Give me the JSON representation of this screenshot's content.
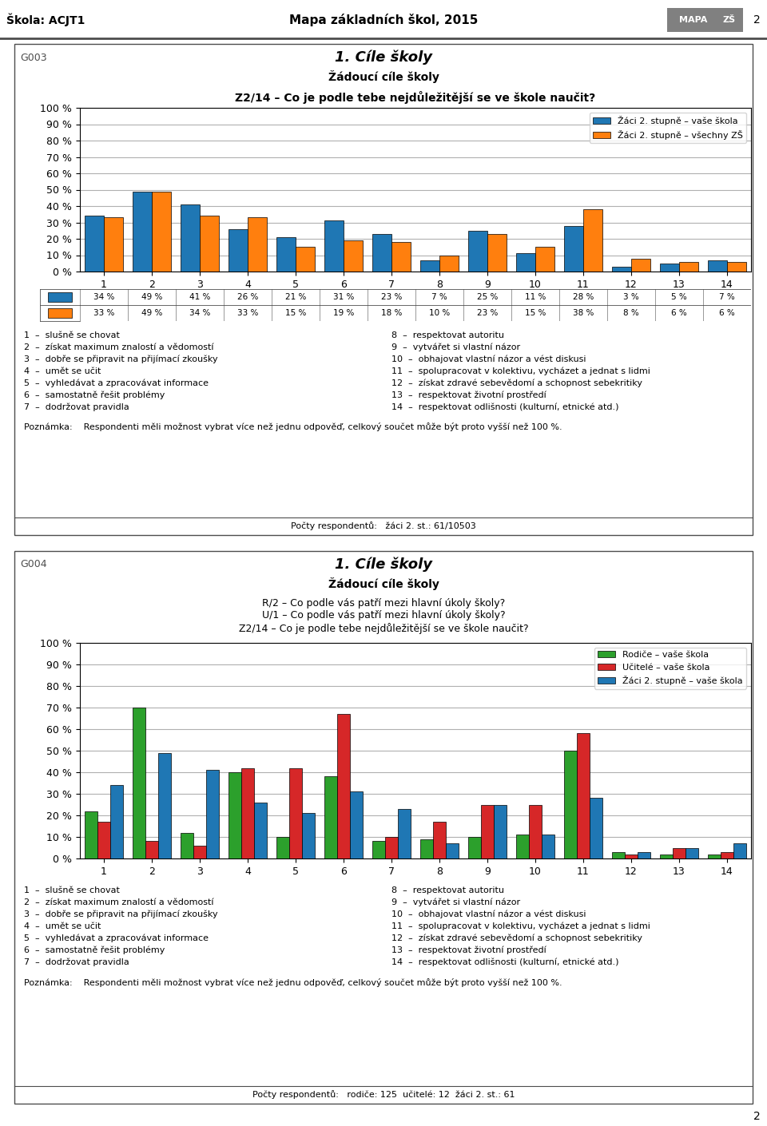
{
  "page": {
    "header_left": "Škola: ACJT1",
    "header_title": "Mapa základních škol, 2015",
    "page_number": "2",
    "logo_texts": [
      "MAPA",
      "ZŠ"
    ]
  },
  "chart_data": [
    {
      "type": "bar",
      "section_id": "G003",
      "section_title": "1. Cíle školy",
      "subtitle": "Žádoucí cíle školy",
      "title": "Z2/14 – Co je podle tebe nejdůležitější se ve škole naučit?",
      "categories": [
        "1",
        "2",
        "3",
        "4",
        "5",
        "6",
        "7",
        "8",
        "9",
        "10",
        "11",
        "12",
        "13",
        "14"
      ],
      "series": [
        {
          "name": "Žáci 2. stupně – vaše škola",
          "color": "#1f77b4",
          "values": [
            34,
            49,
            41,
            26,
            21,
            31,
            23,
            7,
            25,
            11,
            28,
            3,
            5,
            7
          ],
          "value_labels": [
            "34 %",
            "49 %",
            "41 %",
            "26 %",
            "21 %",
            "31 %",
            "23 %",
            "7 %",
            "25 %",
            "11 %",
            "28 %",
            "3 %",
            "5 %",
            "7 %"
          ]
        },
        {
          "name": "Žáci 2. stupně – všechny ZŠ",
          "color": "#ff7f0e",
          "values": [
            33,
            49,
            34,
            33,
            15,
            19,
            18,
            10,
            23,
            15,
            38,
            8,
            6,
            6
          ],
          "value_labels": [
            "33 %",
            "49 %",
            "34 %",
            "33 %",
            "15 %",
            "19 %",
            "18 %",
            "10 %",
            "23 %",
            "15 %",
            "38 %",
            "8 %",
            "6 %",
            "6 %"
          ]
        }
      ],
      "ylim": [
        0,
        100
      ],
      "yticks": [
        {
          "value": 0,
          "label": "0 %"
        },
        {
          "value": 10,
          "label": "10 %"
        },
        {
          "value": 20,
          "label": "20 %"
        },
        {
          "value": 30,
          "label": "30 %"
        },
        {
          "value": 40,
          "label": "40 %"
        },
        {
          "value": 50,
          "label": "50 %"
        },
        {
          "value": 60,
          "label": "60 %"
        },
        {
          "value": 70,
          "label": "70 %"
        },
        {
          "value": 80,
          "label": "80 %"
        },
        {
          "value": 90,
          "label": "90 %"
        },
        {
          "value": 100,
          "label": "100 %"
        }
      ],
      "grid": true,
      "legend": "upper right",
      "category_notes": [
        "1  –  slušně se chovat",
        "2  –  získat maximum znalostí a vědomostí",
        "3  –  dobře se připravit na přijímací zkoušky",
        "4  –  umět se učit",
        "5  –  vyhledávat a zpracovávat informace",
        "6  –  samostatně řešit problémy",
        "7  –  dodržovat pravidla",
        "8  –  respektovat autoritu",
        "9  –  vytvářet si vlastní názor",
        "10  –  obhajovat vlastní názor a vést diskusi",
        "11  –  spolupracovat v kolektivu, vycházet a jednat s lidmi",
        "12  –  získat zdravé sebevědomí a schopnost sebekritiky",
        "13  –  respektovat životní prostředí",
        "14  –  respektovat odlišnosti (kulturní, etnické atd.)"
      ],
      "note": "Poznámka:    Respondenti měli možnost vybrat více než jednu odpověď, celkový součet může být proto vyšší než 100 %.",
      "respondents": "Počty respondentů:   žáci 2. st.: 61/10503"
    },
    {
      "type": "bar",
      "section_id": "G004",
      "section_title": "1. Cíle školy",
      "subtitle": "Žádoucí cíle školy",
      "questions": [
        "R/2 – Co podle vás patří mezi hlavní úkoly školy?",
        "U/1 – Co podle vás patří mezi hlavní úkoly školy?",
        "Z2/14 – Co je podle tebe nejdůležitější se ve škole naučit?"
      ],
      "categories": [
        "1",
        "2",
        "3",
        "4",
        "5",
        "6",
        "7",
        "8",
        "9",
        "10",
        "11",
        "12",
        "13",
        "14"
      ],
      "series": [
        {
          "name": "Rodiče – vaše škola",
          "color": "#2ca02c",
          "values": [
            22,
            70,
            12,
            40,
            10,
            38,
            8,
            9,
            10,
            11,
            50,
            3,
            2,
            2
          ]
        },
        {
          "name": "Učitelé – vaše škola",
          "color": "#d62728",
          "values": [
            17,
            8,
            6,
            42,
            42,
            67,
            10,
            17,
            25,
            25,
            58,
            2,
            5,
            3
          ]
        },
        {
          "name": "Žáci 2. stupně – vaše škola",
          "color": "#1f77b4",
          "values": [
            34,
            49,
            41,
            26,
            21,
            31,
            23,
            7,
            25,
            11,
            28,
            3,
            5,
            7
          ]
        }
      ],
      "ylim": [
        0,
        100
      ],
      "yticks": [
        {
          "value": 0,
          "label": "0 %"
        },
        {
          "value": 10,
          "label": "10 %"
        },
        {
          "value": 20,
          "label": "20 %"
        },
        {
          "value": 30,
          "label": "30 %"
        },
        {
          "value": 40,
          "label": "40 %"
        },
        {
          "value": 50,
          "label": "50 %"
        },
        {
          "value": 60,
          "label": "60 %"
        },
        {
          "value": 70,
          "label": "70 %"
        },
        {
          "value": 80,
          "label": "80 %"
        },
        {
          "value": 90,
          "label": "90 %"
        },
        {
          "value": 100,
          "label": "100 %"
        }
      ],
      "grid": true,
      "legend": "upper right",
      "category_notes": [
        "1  –  slušně se chovat",
        "2  –  získat maximum znalostí a vědomostí",
        "3  –  dobře se připravit na přijímací zkoušky",
        "4  –  umět se učit",
        "5  –  vyhledávat a zpracovávat informace",
        "6  –  samostatně řešit problémy",
        "7  –  dodržovat pravidla",
        "8  –  respektovat autoritu",
        "9  –  vytvářet si vlastní názor",
        "10  –  obhajovat vlastní názor a vést diskusi",
        "11  –  spolupracovat v kolektivu, vycházet a jednat s lidmi",
        "12  –  získat zdravé sebevědomí a schopnost sebekritiky",
        "13  –  respektovat životní prostředí",
        "14  –  respektovat odlišnosti (kulturní, etnické atd.)"
      ],
      "note": "Poznámka:    Respondenti měli možnost vybrat více než jednu odpověď, celkový součet může být proto vyšší než 100 %.",
      "respondents": "Počty respondentů:   rodiče: 125  učitelé: 12  žáci 2. st.: 61"
    }
  ]
}
